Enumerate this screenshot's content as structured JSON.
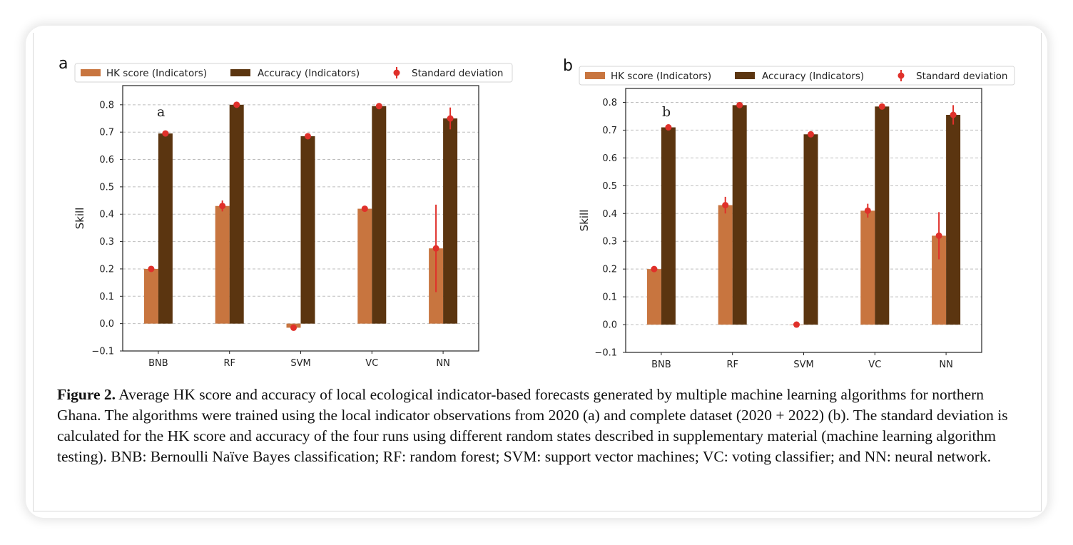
{
  "figure": {
    "caption_label": "Figure 2.",
    "caption_text": "Average HK score and accuracy of local ecological indicator-based forecasts generated by multiple machine learning algorithms for northern Ghana. The algorithms were trained using the local indicator observations from 2020 (a) and complete dataset (2020 + 2022) (b). The standard deviation is calculated for the HK score and accuracy of the four runs using different random states described in supplementary material (machine learning algorithm testing). BNB: Bernoulli Naïve Bayes classification; RF: random forest; SVM: support vector machines; VC: voting classifier; and NN: neural network."
  },
  "colors": {
    "hk": "#c8753f",
    "accuracy": "#5b3510",
    "std": "#e0302a",
    "grid": "#bdbdbd"
  },
  "chart_data": [
    {
      "type": "bar",
      "panel_label": "a",
      "annotation": "a",
      "categories": [
        "BNB",
        "RF",
        "SVM",
        "VC",
        "NN"
      ],
      "ylabel": "Skill",
      "xlabel": "",
      "ylim": [
        -0.1,
        0.87
      ],
      "yticks": [
        "−0.1",
        "0.0",
        "0.1",
        "0.2",
        "0.3",
        "0.4",
        "0.5",
        "0.6",
        "0.7",
        "0.8"
      ],
      "ytick_values": [
        -0.1,
        0.0,
        0.1,
        0.2,
        0.3,
        0.4,
        0.5,
        0.6,
        0.7,
        0.8
      ],
      "grid": true,
      "legend_position": "top",
      "legend": [
        "HK score (Indicators)",
        "Accuracy (Indicators)",
        "Standard deviation"
      ],
      "series": [
        {
          "name": "HK score (Indicators)",
          "values": [
            0.2,
            0.43,
            -0.015,
            0.42,
            0.275
          ],
          "std": [
            0.005,
            0.02,
            0.008,
            0.008,
            0.16
          ]
        },
        {
          "name": "Accuracy (Indicators)",
          "values": [
            0.695,
            0.8,
            0.685,
            0.795,
            0.75
          ],
          "std": [
            0.003,
            0.005,
            0.004,
            0.004,
            0.04
          ]
        }
      ]
    },
    {
      "type": "bar",
      "panel_label": "b",
      "annotation": "b",
      "categories": [
        "BNB",
        "RF",
        "SVM",
        "VC",
        "NN"
      ],
      "ylabel": "Skill",
      "xlabel": "",
      "ylim": [
        -0.1,
        0.85
      ],
      "yticks": [
        "−0.1",
        "0.0",
        "0.1",
        "0.2",
        "0.3",
        "0.4",
        "0.5",
        "0.6",
        "0.7",
        "0.8"
      ],
      "ytick_values": [
        -0.1,
        0.0,
        0.1,
        0.2,
        0.3,
        0.4,
        0.5,
        0.6,
        0.7,
        0.8
      ],
      "grid": true,
      "legend_position": "top",
      "legend": [
        "HK score (Indicators)",
        "Accuracy (Indicators)",
        "Standard deviation"
      ],
      "series": [
        {
          "name": "HK score (Indicators)",
          "values": [
            0.2,
            0.43,
            0.0,
            0.41,
            0.32
          ],
          "std": [
            0.005,
            0.03,
            0.003,
            0.025,
            0.085
          ]
        },
        {
          "name": "Accuracy (Indicators)",
          "values": [
            0.71,
            0.79,
            0.685,
            0.785,
            0.755
          ],
          "std": [
            0.004,
            0.006,
            0.004,
            0.004,
            0.035
          ]
        }
      ]
    }
  ]
}
